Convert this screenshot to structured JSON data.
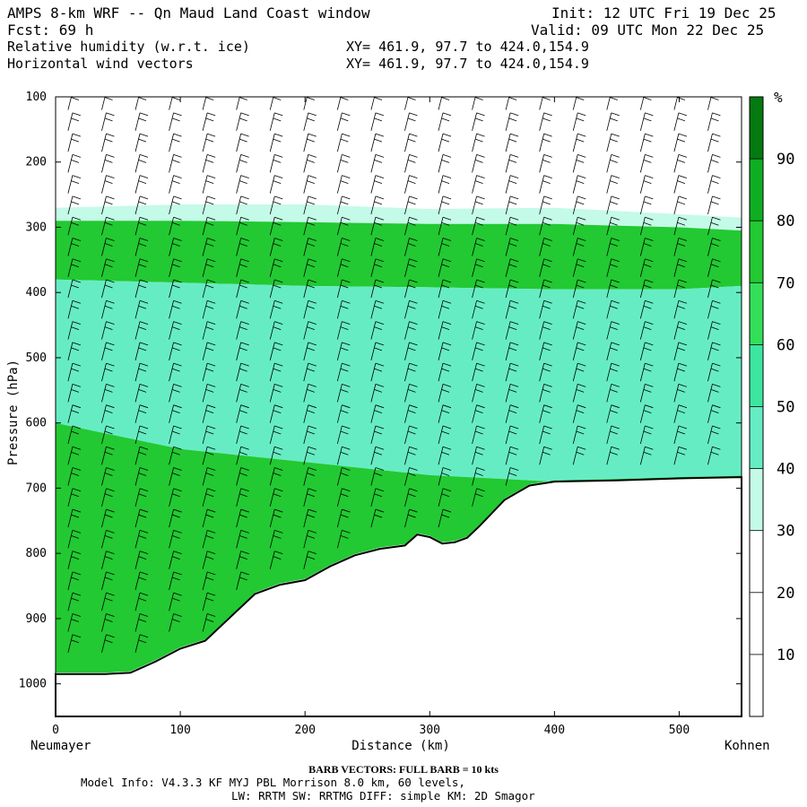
{
  "header": {
    "title": "AMPS 8-km WRF -- Qn Maud Land Coast window",
    "init": "Init: 12 UTC Fri 19 Dec 25",
    "fcst": "Fcst:   69 h",
    "valid": "Valid: 09 UTC Mon 22 Dec 25",
    "field1": "Relative humidity (w.r.t. ice)",
    "xy1": "XY= 461.9, 97.7 to 424.0,154.9",
    "field2": "Horizontal wind vectors",
    "xy2": "XY= 461.9, 97.7 to 424.0,154.9"
  },
  "footer": {
    "barb_note": "BARB VECTORS:  FULL BARB = 10 kts",
    "model_line1": "Model Info: V4.3.3   KF      MYJ PBL  Morrison           8.0 km,  60 levels,",
    "model_line2": "LW: RRTM SW: RRTMG   DIFF: simple KM: 2D Smagor"
  },
  "chart_data": {
    "type": "cross-section contour",
    "xlabel": "Distance (km)",
    "ylabel": "Pressure (hPa)",
    "xlim": [
      0,
      550
    ],
    "ylim": [
      1050,
      100
    ],
    "x_ticks": [
      0,
      100,
      200,
      300,
      400,
      500
    ],
    "y_ticks": [
      100,
      200,
      300,
      400,
      500,
      600,
      700,
      800,
      900,
      1000
    ],
    "x_end_labels": {
      "left": "Neumayer",
      "right": "Kohnen"
    },
    "colorbar": {
      "unit": "%",
      "levels": [
        10,
        20,
        30,
        40,
        50,
        60,
        70,
        80,
        90
      ],
      "colors": [
        "#ffffff",
        "#ffffff",
        "#ffffff",
        "#c4fae8",
        "#66ecc3",
        "#3de6a0",
        "#33df58",
        "#22c932",
        "#0eae22",
        "#047a10"
      ]
    },
    "terrain_hPa": {
      "x": [
        0,
        20,
        40,
        60,
        80,
        100,
        120,
        140,
        160,
        180,
        200,
        220,
        240,
        260,
        280,
        290,
        300,
        310,
        320,
        330,
        340,
        350,
        360,
        380,
        400,
        450,
        500,
        550
      ],
      "p": [
        985,
        985,
        985,
        983,
        966,
        946,
        934,
        898,
        862,
        848,
        841,
        820,
        803,
        793,
        788,
        771,
        775,
        785,
        783,
        776,
        758,
        738,
        718,
        696,
        690,
        688,
        685,
        683
      ]
    },
    "rh_bands": [
      {
        "name": "",
        "x": [
          0,
          100,
          200,
          300,
          400,
          500,
          550
        ],
        "top": [
          270,
          265,
          265,
          272,
          270,
          280,
          285
        ],
        "bottom": [
          290,
          290,
          292,
          295,
          295,
          300,
          305
        ],
        "value": 35
      },
      {
        "name": "",
        "x": [
          0,
          100,
          200,
          300,
          400,
          500,
          550
        ],
        "top": [
          290,
          290,
          292,
          295,
          295,
          300,
          305
        ],
        "bottom": [
          380,
          385,
          390,
          392,
          395,
          395,
          390
        ],
        "value": 75
      },
      {
        "name": "",
        "x": [
          0,
          100,
          200,
          300,
          400,
          500,
          550
        ],
        "top": [
          380,
          385,
          390,
          392,
          395,
          395,
          390
        ],
        "bottom": [
          600,
          640,
          660,
          680,
          690,
          690,
          690
        ],
        "value": 45
      }
    ]
  }
}
